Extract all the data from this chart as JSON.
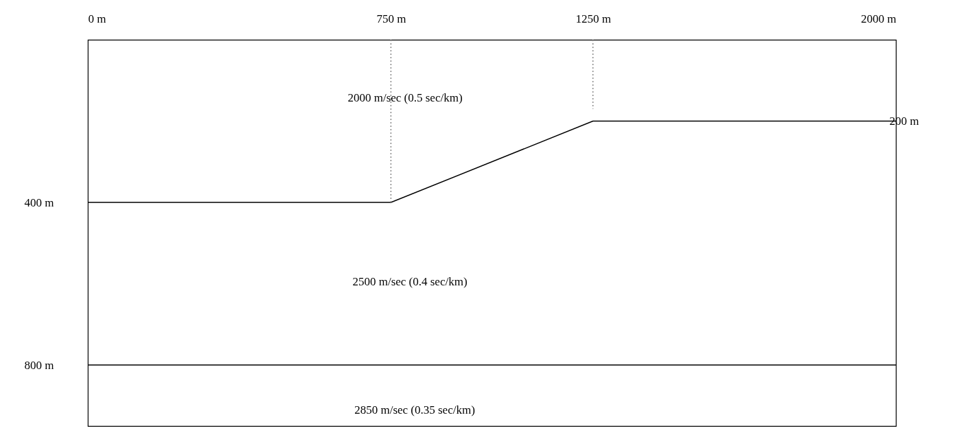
{
  "chart_data": {
    "type": "line",
    "xlim": [
      0,
      2000
    ],
    "xticks": [
      {
        "value": 0,
        "label": "0 m"
      },
      {
        "value": 750,
        "label": "750 m"
      },
      {
        "value": 1250,
        "label": "1250 m"
      },
      {
        "value": 2000,
        "label": "2000 m"
      }
    ],
    "ylim": [
      950,
      0
    ],
    "yticks": [
      {
        "value": 400,
        "label": "400 m"
      },
      {
        "value": 800,
        "label": "800 m"
      }
    ],
    "grid": false,
    "line_style": "solid",
    "series": [
      {
        "color": "#000000",
        "x": [
          0,
          750,
          1250,
          2000
        ],
        "values": [
          400,
          400,
          200,
          200
        ]
      },
      {
        "color": "#000000",
        "x": [
          0,
          2000
        ],
        "values": [
          800,
          800
        ]
      },
      {
        "line_style": "dotted",
        "color": "#888888",
        "x": [
          750,
          750
        ],
        "values": [
          0,
          400
        ]
      },
      {
        "line_style": "dotted",
        "color": "#888888",
        "x": [
          1250,
          1250
        ],
        "values": [
          0,
          170
        ]
      }
    ],
    "annotations": [
      "2000 m/sec   (0.5 sec/km)",
      "2500 m/sec   (0.4 sec/km)",
      "2850 m/sec   (0.35 sec/km)",
      {
        "text": "200 m",
        "x": 2000,
        "y": 200
      }
    ]
  }
}
